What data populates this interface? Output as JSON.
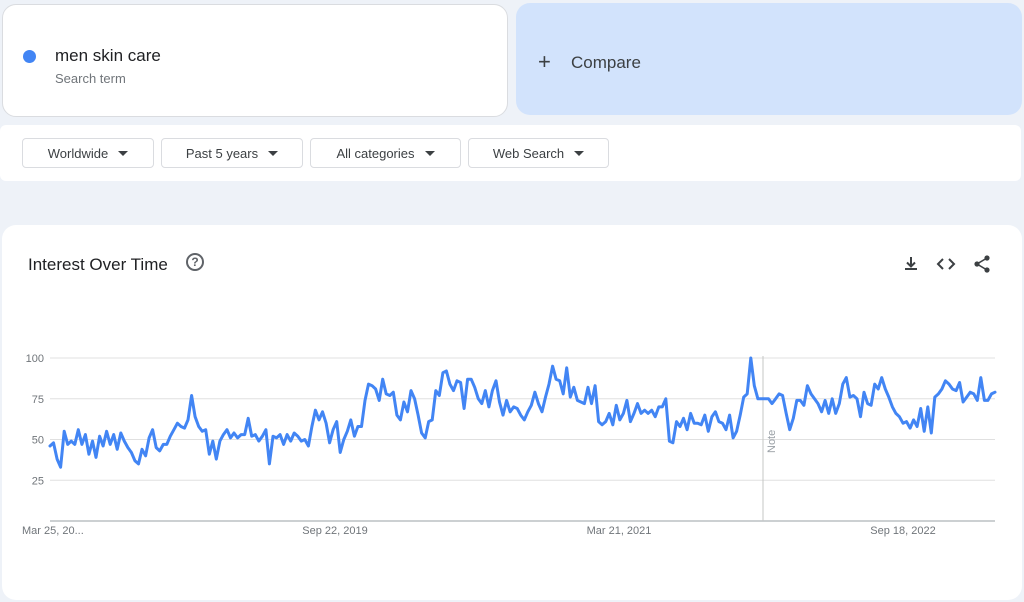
{
  "search_term": {
    "name": "men skin care",
    "subtitle": "Search term",
    "color": "#4285f4"
  },
  "compare": {
    "icon": "plus-icon",
    "plus": "+",
    "label": "Compare"
  },
  "filters": [
    {
      "label": "Worldwide"
    },
    {
      "label": "Past 5 years"
    },
    {
      "label": "All categories"
    },
    {
      "label": "Web Search"
    }
  ],
  "panel": {
    "title": "Interest Over Time",
    "help_icon": "question-circle-icon",
    "help_glyph": "?",
    "tools": [
      "download-icon",
      "embed-code-icon",
      "share-icon"
    ]
  },
  "chart_data": {
    "type": "line",
    "series": [
      {
        "color": "#4285f4",
        "values": [
          46,
          48,
          38,
          33,
          55,
          47,
          49,
          47,
          56,
          47,
          53,
          41,
          49,
          39,
          52,
          46,
          55,
          47,
          53,
          44,
          54,
          49,
          45,
          42,
          37,
          35,
          44,
          40,
          51,
          56,
          45,
          43,
          47,
          47,
          52,
          56,
          60,
          58,
          57,
          62,
          77,
          64,
          58,
          55,
          56,
          41,
          49,
          38,
          49,
          53,
          56,
          51,
          54,
          51,
          53,
          53,
          63,
          52,
          53,
          49,
          52,
          56,
          35,
          52,
          51,
          53,
          47,
          53,
          49,
          54,
          52,
          49,
          50,
          46,
          58,
          68,
          62,
          67,
          60,
          48,
          56,
          61,
          42,
          50,
          55,
          62,
          52,
          58,
          58,
          74,
          84,
          83,
          81,
          74,
          87,
          78,
          77,
          79,
          65,
          62,
          73,
          67,
          80,
          75,
          65,
          54,
          51,
          61,
          62,
          80,
          77,
          91,
          92,
          84,
          80,
          86,
          85,
          69,
          87,
          87,
          82,
          75,
          72,
          80,
          70,
          80,
          86,
          73,
          65,
          74,
          67,
          70,
          69,
          65,
          62,
          67,
          71,
          79,
          72,
          67,
          76,
          84,
          95,
          87,
          86,
          78,
          94,
          76,
          82,
          74,
          73,
          72,
          82,
          72,
          83,
          61,
          59,
          61,
          66,
          59,
          71,
          62,
          66,
          74,
          61,
          66,
          72,
          66,
          68,
          66,
          68,
          64,
          70,
          70,
          75,
          49,
          48,
          61,
          58,
          63,
          56,
          66,
          60,
          60,
          59,
          65,
          55,
          64,
          67,
          61,
          60,
          56,
          65,
          51,
          55,
          65,
          76,
          78,
          100,
          83,
          75,
          75,
          75,
          75,
          72,
          75,
          78,
          77,
          66,
          56,
          63,
          74,
          74,
          71,
          83,
          78,
          75,
          72,
          67,
          74,
          66,
          75,
          66,
          72,
          84,
          88,
          76,
          77,
          75,
          64,
          79,
          72,
          71,
          84,
          81,
          88,
          81,
          76,
          70,
          66,
          64,
          60,
          61,
          57,
          62,
          58,
          69,
          55,
          70,
          54,
          76,
          78,
          81,
          86,
          84,
          81,
          80,
          85,
          73,
          76,
          79,
          78,
          74,
          88,
          74,
          74,
          78,
          79
        ]
      }
    ],
    "y_ticks": [
      25,
      50,
      75,
      100
    ],
    "x_labels": [
      "Mar 25, 20...",
      "Sep 22, 2019",
      "Mar 21, 2021",
      "Sep 18, 2022"
    ],
    "ylim": [
      0,
      100
    ],
    "note_label": "Note",
    "grid": true
  }
}
